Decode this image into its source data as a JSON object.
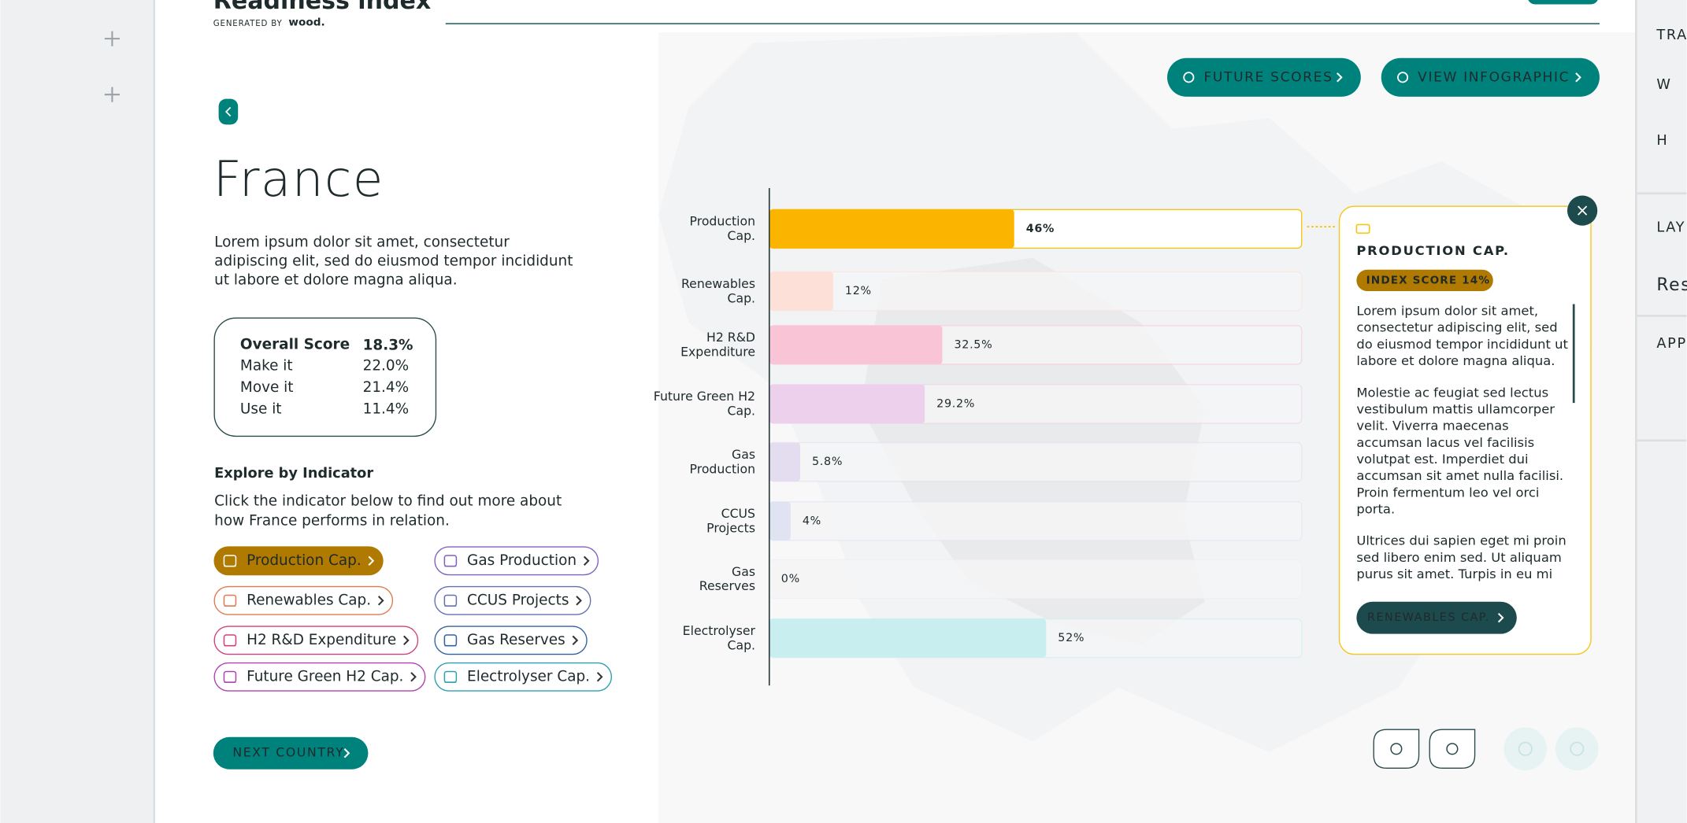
{
  "header": {
    "title": "Readiness index",
    "generated_by": "GENERATED BY",
    "brand": "wood."
  },
  "actions": {
    "future_scores": "FUTURE SCORES",
    "view_infographic": "VIEW INFOGRAPHIC",
    "next_country": "NEXT COUNTRY"
  },
  "country": {
    "name": "France",
    "description": [
      "Lorem ipsum dolor sit amet, consectetur",
      "adipiscing elit, sed do eiusmod tempor incididunt",
      "ut labore et dolore magna aliqua."
    ]
  },
  "scores": {
    "rows": [
      [
        "Overall Score",
        "18.3%"
      ],
      [
        "Make it",
        "22.0%"
      ],
      [
        "Move it",
        "21.4%"
      ],
      [
        "Use it",
        "11.4%"
      ]
    ]
  },
  "explore": {
    "title": "Explore by Indicator",
    "instruction": [
      " Click the indicator below to find out more about",
      "how France performs in relation."
    ]
  },
  "indicators": [
    {
      "label": "Production Cap.",
      "color": "#b07a00"
    },
    {
      "label": "Renewables Cap.",
      "color": "#e07a50"
    },
    {
      "label": "H2 R&D Expenditure",
      "color": "#d0407a"
    },
    {
      "label": "Future Green H2 Cap.",
      "color": "#b040b0"
    },
    {
      "label": "Gas Production",
      "color": "#8060c0"
    },
    {
      "label": "CCUS Projects",
      "color": "#6070b0"
    },
    {
      "label": "Gas Reserves",
      "color": "#3060a0"
    },
    {
      "label": "Electrolyser Cap.",
      "color": "#2aa0b0"
    }
  ],
  "chart_data": {
    "type": "bar",
    "orientation": "horizontal",
    "categories": [
      "Production Cap.",
      "Renewables Cap.",
      "H2 R&D Expenditure",
      "Future Green H2 Cap.",
      "Gas Production",
      "CCUS Projects",
      "Gas Reserves",
      "Electrolyser Cap."
    ],
    "values": [
      46,
      12,
      32.5,
      29.2,
      5.8,
      4,
      0,
      52
    ],
    "value_labels": [
      "46%",
      "12%",
      "32.5%",
      "29.2%",
      "5.8%",
      "4%",
      "0%",
      "52%"
    ],
    "colors": [
      "#fbb400",
      "#fde0d8",
      "#f9c4d6",
      "#ecd0ec",
      "#e4dcef",
      "#e0e3f2",
      "#eeeeee",
      "#c8eef0"
    ],
    "xlim": [
      0,
      100
    ]
  },
  "detail": {
    "title": "PRODUCTION CAP.",
    "badge": "INDEX SCORE 14%",
    "paragraphs": [
      [
        "Lorem ipsum dolor sit amet,",
        "consectetur adipiscing elit, sed",
        "do eiusmod tempor incididunt ut",
        "labore et dolore magna aliqua."
      ],
      [
        "Molestie ac feugiat sed lectus",
        "vestibulum mattis ullamcorper",
        "velit. Viverra maecenas",
        "accumsan lacus vel facilisis",
        "volutpat est. Imperdiet dui",
        "accumsan sit amet nulla facilisi.",
        "Proin fermentum leo vel orci",
        "porta."
      ],
      [
        "Ultrices dui sapien eget mi proin",
        "sed libero enim sed. Ut aliquam",
        "purus sit amet. Turpis in eu mi"
      ]
    ],
    "next": "RENEWABLES CAP."
  },
  "side_panel": {
    "labels": [
      "TRA",
      "W",
      "H",
      "LAY",
      "Res",
      "APP"
    ]
  }
}
